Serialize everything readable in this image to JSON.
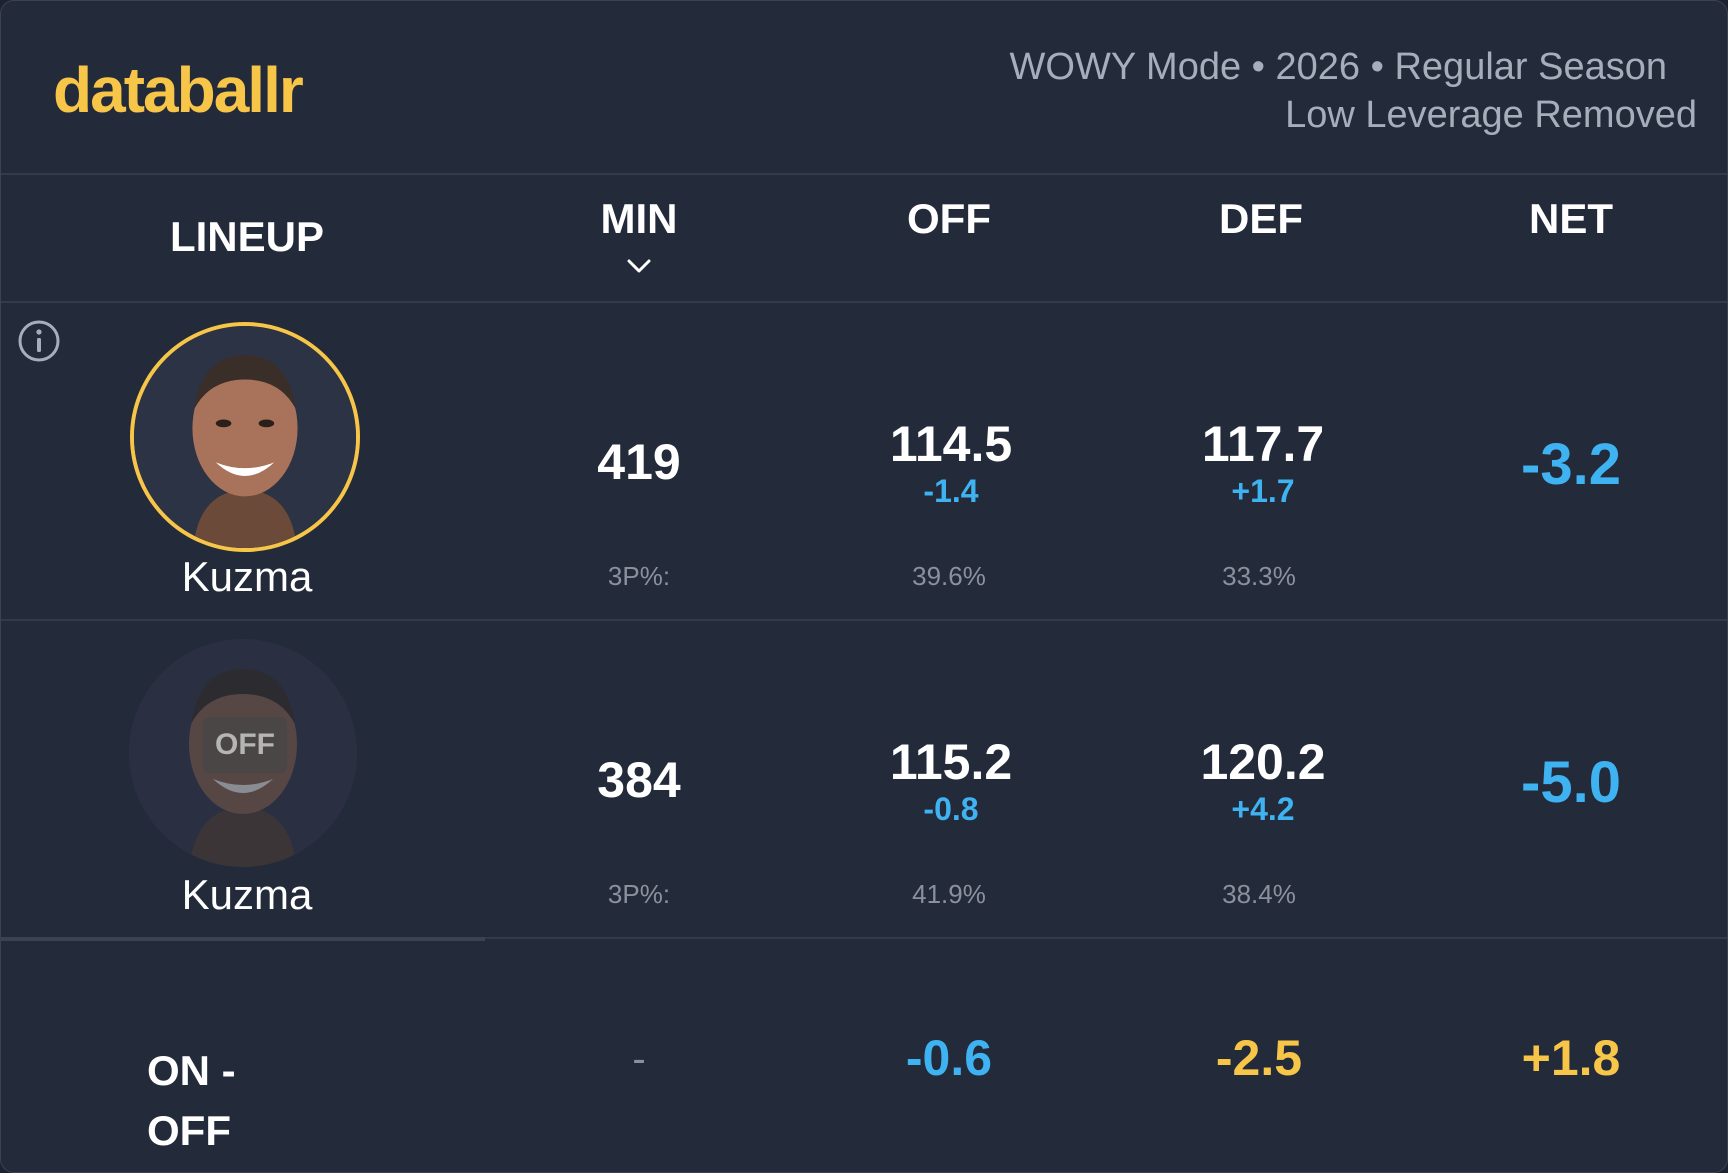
{
  "brand": {
    "logo_text": "databallr",
    "accent_color": "#f7c548"
  },
  "header": {
    "mode_line": "WOWY Mode • 2026 • Regular Season",
    "filter_line": "Low Leverage Removed"
  },
  "columns": {
    "lineup": "LINEUP",
    "min": "MIN",
    "off": "OFF",
    "def": "DEF",
    "net": "NET",
    "sort_icon": "chevron-down-icon"
  },
  "rows": [
    {
      "player": "Kuzma",
      "status": "on",
      "min": "419",
      "off": "114.5",
      "off_delta": "-1.4",
      "def": "117.7",
      "def_delta": "+1.7",
      "net": "-3.2",
      "threep_label": "3P%:",
      "off_3p": "39.6%",
      "def_3p": "33.3%"
    },
    {
      "player": "Kuzma",
      "status": "off",
      "off_badge": "OFF",
      "min": "384",
      "off": "115.2",
      "off_delta": "-0.8",
      "def": "120.2",
      "def_delta": "+4.2",
      "net": "-5.0",
      "threep_label": "3P%:",
      "off_3p": "41.9%",
      "def_3p": "38.4%"
    }
  ],
  "on_off": {
    "label_line1": "ON -",
    "label_line2": "OFF",
    "min": "-",
    "off": "-0.6",
    "def": "-2.5",
    "net": "+1.8"
  },
  "colors": {
    "positive_good": "#f7c548",
    "negative": "#3fb3f2",
    "background": "#232a3a"
  }
}
